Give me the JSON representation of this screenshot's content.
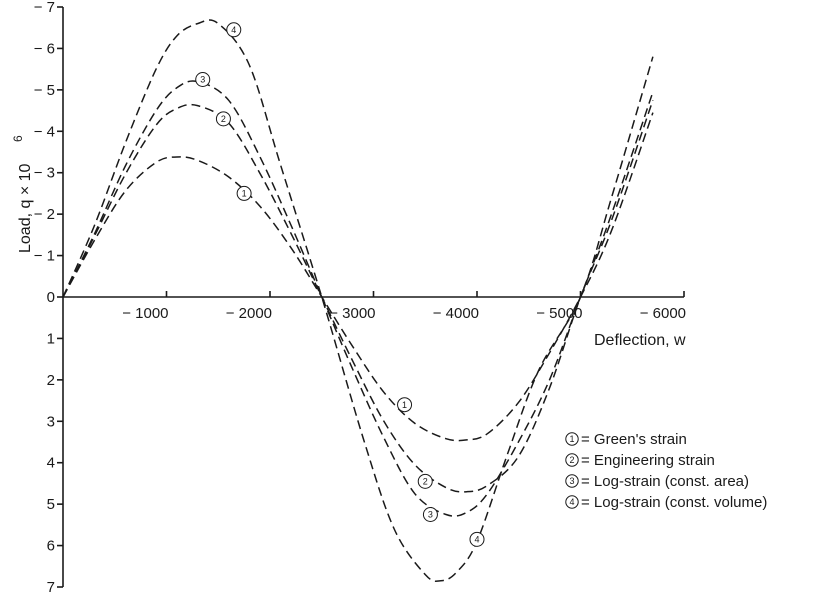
{
  "chart_data": {
    "type": "line",
    "xlabel": "Deflection, w",
    "ylabel": "Load, q × 10",
    "ylabel_exponent": "6",
    "xlim": [
      0,
      -6000
    ],
    "ylim": [
      -7,
      7
    ],
    "x_ticks": [
      {
        "value": -1000,
        "label": "− 1000"
      },
      {
        "value": -2000,
        "label": "− 2000"
      },
      {
        "value": -3000,
        "label": "− 3000"
      },
      {
        "value": -4000,
        "label": "− 4000"
      },
      {
        "value": -5000,
        "label": "− 5000"
      },
      {
        "value": -6000,
        "label": "− 6000"
      }
    ],
    "y_ticks": [
      {
        "value": -7,
        "label": "− 7"
      },
      {
        "value": -6,
        "label": "− 6"
      },
      {
        "value": -5,
        "label": "− 5"
      },
      {
        "value": -4,
        "label": "− 4"
      },
      {
        "value": -3,
        "label": "− 3"
      },
      {
        "value": -2,
        "label": "− 2"
      },
      {
        "value": -1,
        "label": "− 1"
      },
      {
        "value": 0,
        "label": "0"
      },
      {
        "value": 1,
        "label": "1"
      },
      {
        "value": 2,
        "label": "2"
      },
      {
        "value": 3,
        "label": "3"
      },
      {
        "value": 4,
        "label": "4"
      },
      {
        "value": 5,
        "label": "5"
      },
      {
        "value": 6,
        "label": "6"
      },
      {
        "value": 7,
        "label": "7"
      }
    ],
    "series": [
      {
        "name": "Green's strain",
        "marker": "1",
        "x": [
          0,
          -300,
          -600,
          -900,
          -1100,
          -1300,
          -1600,
          -1900,
          -2200,
          -2500,
          -2800,
          -3100,
          -3400,
          -3700,
          -3900,
          -4100,
          -4400,
          -4700,
          -5000,
          -5300,
          -5700
        ],
        "y": [
          0,
          -1.35,
          -2.55,
          -3.25,
          -3.38,
          -3.3,
          -2.9,
          -2.2,
          -1.2,
          0,
          1.2,
          2.3,
          3.05,
          3.42,
          3.45,
          3.3,
          2.55,
          1.35,
          0,
          -1.6,
          -4.45
        ],
        "marker_at": {
          "x": -1750,
          "y": -2.5
        },
        "marker_at2": {
          "x": -3300,
          "y": 2.6
        }
      },
      {
        "name": "Engineering strain",
        "marker": "2",
        "x": [
          0,
          -300,
          -600,
          -900,
          -1100,
          -1300,
          -1600,
          -1900,
          -2200,
          -2500,
          -2800,
          -3100,
          -3400,
          -3700,
          -3900,
          -4100,
          -4400,
          -4700,
          -5000,
          -5300,
          -5700
        ],
        "y": [
          0,
          -1.45,
          -2.95,
          -4.15,
          -4.55,
          -4.62,
          -4.2,
          -3.0,
          -1.55,
          0,
          1.55,
          3.0,
          4.05,
          4.6,
          4.7,
          4.55,
          3.85,
          2.2,
          0,
          -1.85,
          -4.75
        ],
        "marker_at": {
          "x": -1550,
          "y": -4.3
        },
        "marker_at2": {
          "x": -3500,
          "y": 4.45
        }
      },
      {
        "name": "Log-strain (const. area)",
        "marker": "3",
        "x": [
          0,
          -300,
          -600,
          -900,
          -1100,
          -1300,
          -1600,
          -1900,
          -2200,
          -2500,
          -2800,
          -3100,
          -3400,
          -3700,
          -3900,
          -4100,
          -4400,
          -4700,
          -5000,
          -5300,
          -5700
        ],
        "y": [
          0,
          -1.5,
          -3.15,
          -4.5,
          -5.05,
          -5.2,
          -4.75,
          -3.4,
          -1.75,
          0,
          1.75,
          3.4,
          4.75,
          5.25,
          5.2,
          4.75,
          3.5,
          2.0,
          0,
          -2.0,
          -4.95
        ],
        "marker_at": {
          "x": -1350,
          "y": -5.25
        },
        "marker_at2": {
          "x": -3550,
          "y": 5.25
        }
      },
      {
        "name": "Log-strain (const. volume)",
        "marker": "4",
        "x": [
          0,
          -300,
          -600,
          -900,
          -1100,
          -1300,
          -1500,
          -1800,
          -2100,
          -2500,
          -2900,
          -3200,
          -3500,
          -3650,
          -3800,
          -4000,
          -4300,
          -4600,
          -5000,
          -5300,
          -5700
        ],
        "y": [
          0,
          -1.7,
          -3.7,
          -5.5,
          -6.3,
          -6.6,
          -6.6,
          -5.6,
          -3.2,
          0,
          3.4,
          5.6,
          6.7,
          6.85,
          6.65,
          5.9,
          3.75,
          1.75,
          0,
          -2.4,
          -5.8
        ],
        "marker_at": {
          "x": -1650,
          "y": -6.45
        },
        "marker_at2": {
          "x": -4000,
          "y": 5.85
        }
      }
    ],
    "legend": {
      "position": "right",
      "entries": [
        {
          "marker": "1",
          "label": "= Green's strain"
        },
        {
          "marker": "2",
          "label": "= Engineering strain"
        },
        {
          "marker": "3",
          "label": "= Log-strain (const. area)"
        },
        {
          "marker": "4",
          "label": "= Log-strain (const. volume)"
        }
      ]
    },
    "grid": false
  }
}
